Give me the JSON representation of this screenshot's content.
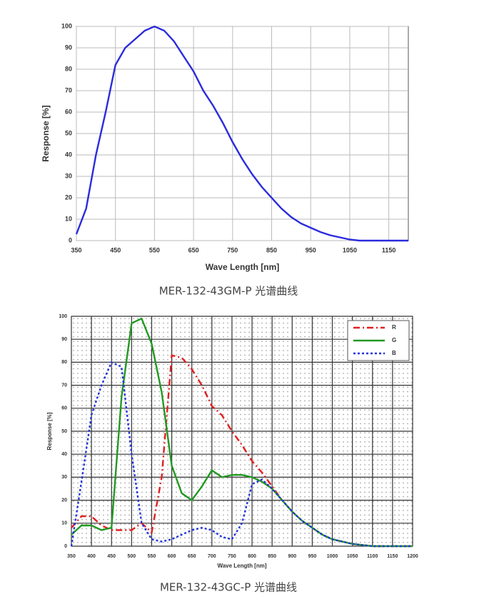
{
  "chart_data": [
    {
      "type": "line",
      "x_label": "Wave Length [nm]",
      "y_label": "Response [%]",
      "caption": "MER-132-43GM-P 光谱曲线",
      "x": [
        350,
        375,
        400,
        425,
        450,
        475,
        500,
        525,
        550,
        575,
        600,
        625,
        650,
        675,
        700,
        725,
        750,
        775,
        800,
        825,
        850,
        875,
        900,
        925,
        950,
        975,
        1000,
        1025,
        1050,
        1075,
        1100,
        1150,
        1200
      ],
      "values": [
        3,
        15,
        40,
        60,
        82,
        90,
        94,
        98,
        100,
        98,
        93,
        86,
        79,
        70,
        63,
        55,
        46,
        38,
        31,
        25,
        20,
        15,
        11,
        8,
        6,
        4,
        2.5,
        1.5,
        0.5,
        0,
        0,
        0,
        0
      ],
      "color": "#2b2bdd",
      "xlim": [
        350,
        1200
      ],
      "xticks": [
        350,
        450,
        550,
        650,
        750,
        850,
        950,
        1050,
        1150
      ],
      "ylim": [
        0,
        100
      ],
      "yticks": [
        0,
        10,
        20,
        30,
        40,
        50,
        60,
        70,
        80,
        90,
        100
      ],
      "grid": true
    },
    {
      "type": "line",
      "x_label": "Wave Length [nm]",
      "y_label": "Response [%]",
      "caption": "MER-132-43GC-P 光谱曲线",
      "x": [
        350,
        375,
        400,
        425,
        450,
        475,
        500,
        525,
        550,
        575,
        600,
        625,
        650,
        675,
        700,
        725,
        750,
        775,
        800,
        825,
        850,
        875,
        900,
        925,
        950,
        975,
        1000,
        1025,
        1050,
        1075,
        1100,
        1125,
        1150,
        1175,
        1200
      ],
      "series": [
        {
          "name": "R",
          "color": "#e02020",
          "dash": "dashdot",
          "values": [
            8,
            13,
            13,
            9,
            7,
            7,
            7,
            10,
            6,
            30,
            83,
            82,
            77,
            70,
            61,
            57,
            50,
            44,
            37,
            32,
            26,
            20,
            15,
            11,
            8,
            5,
            3,
            2,
            1,
            0.5,
            0,
            0,
            0,
            0,
            0
          ]
        },
        {
          "name": "G",
          "color": "#229922",
          "dash": "solid",
          "values": [
            5,
            9,
            9,
            7,
            8,
            65,
            97,
            99,
            88,
            67,
            35,
            23,
            20,
            26,
            33,
            30,
            31,
            31,
            30,
            28,
            25,
            20,
            15,
            11,
            8,
            5,
            3,
            2,
            1,
            0.5,
            0,
            0,
            0,
            0,
            0
          ]
        },
        {
          "name": "B",
          "color": "#2233dd",
          "dash": "dotted",
          "values": [
            0,
            28,
            57,
            70,
            80,
            78,
            40,
            10,
            3,
            2,
            3,
            5,
            7,
            8,
            7,
            4,
            3,
            10,
            27,
            29,
            25,
            20,
            15,
            11,
            8,
            5,
            3,
            2,
            1,
            0.5,
            0,
            0,
            0,
            0,
            0
          ]
        }
      ],
      "legend": "upper right",
      "xlim": [
        350,
        1200
      ],
      "xticks": [
        350,
        400,
        450,
        500,
        550,
        600,
        650,
        700,
        750,
        800,
        850,
        900,
        950,
        1000,
        1050,
        1100,
        1150,
        1200
      ],
      "ylim": [
        0,
        100
      ],
      "yticks": [
        0,
        10,
        20,
        30,
        40,
        50,
        60,
        70,
        80,
        90,
        100
      ],
      "grid": true
    }
  ]
}
